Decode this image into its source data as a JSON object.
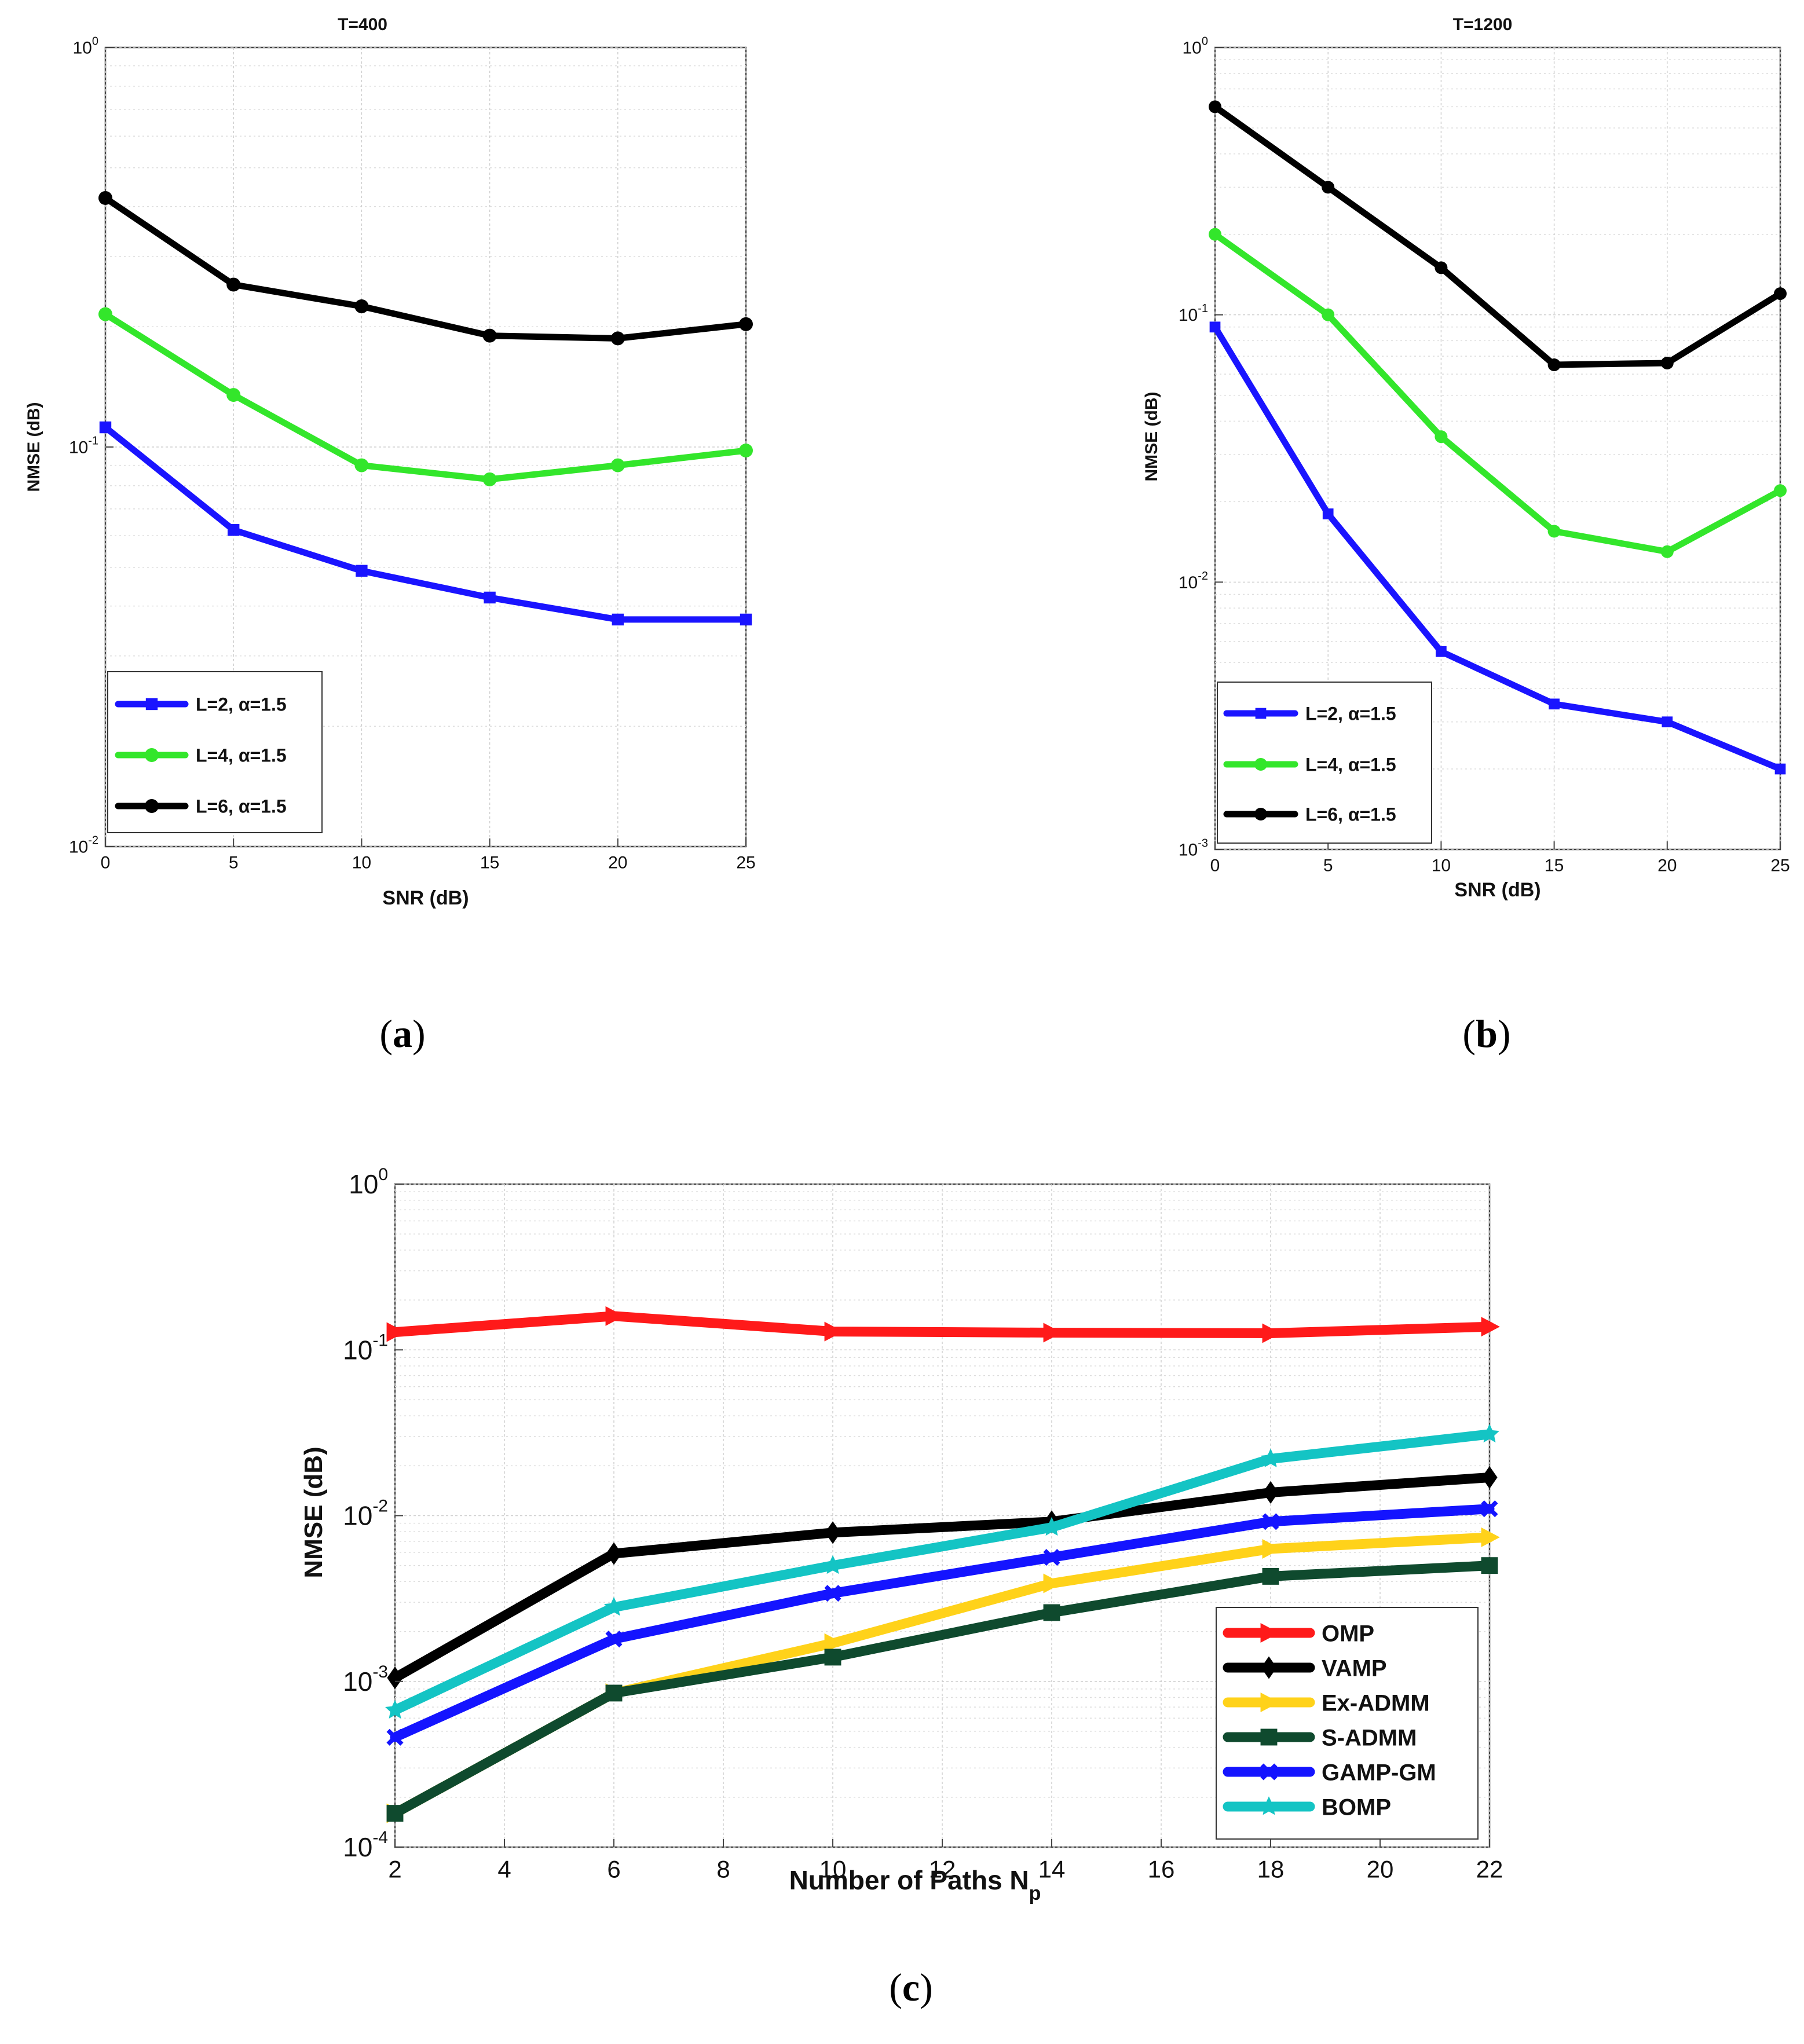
{
  "chart_data": [
    {
      "type": "line",
      "panel_label": "a",
      "title": "T=400",
      "xlabel": "SNR (dB)",
      "ylabel": "NMSE (dB)",
      "yscale": "log",
      "xlim": [
        0,
        25
      ],
      "ylim": [
        0.01,
        1
      ],
      "x_ticks": [
        0,
        5,
        10,
        15,
        20,
        25
      ],
      "y_ticks": [
        {
          "value": 0.01,
          "base": "10",
          "exp": "-2"
        },
        {
          "value": 0.1,
          "base": "10",
          "exp": "-1"
        },
        {
          "value": 1,
          "base": "10",
          "exp": "0"
        }
      ],
      "grid": true,
      "legend_position": "bottom-left",
      "x": [
        0,
        5,
        10,
        15,
        20,
        25
      ],
      "series": [
        {
          "name": "L=2, α=1.5",
          "color": "#1a14ff",
          "marker": "square",
          "values": [
            0.112,
            0.062,
            0.049,
            0.042,
            0.037,
            0.037
          ]
        },
        {
          "name": "L=4, α=1.5",
          "color": "#33e62b",
          "marker": "circle",
          "values": [
            0.215,
            0.135,
            0.09,
            0.083,
            0.09,
            0.098
          ]
        },
        {
          "name": "L=6, α=1.5",
          "color": "#000000",
          "marker": "circle",
          "values": [
            0.42,
            0.255,
            0.225,
            0.19,
            0.187,
            0.203
          ]
        }
      ]
    },
    {
      "type": "line",
      "panel_label": "b",
      "title": "T=1200",
      "xlabel": "SNR (dB)",
      "ylabel": "NMSE (dB)",
      "yscale": "log",
      "xlim": [
        0,
        25
      ],
      "ylim": [
        0.001,
        1
      ],
      "x_ticks": [
        0,
        5,
        10,
        15,
        20,
        25
      ],
      "y_ticks": [
        {
          "value": 0.001,
          "base": "10",
          "exp": "-3"
        },
        {
          "value": 0.01,
          "base": "10",
          "exp": "-2"
        },
        {
          "value": 0.1,
          "base": "10",
          "exp": "-1"
        },
        {
          "value": 1,
          "base": "10",
          "exp": "0"
        }
      ],
      "grid": true,
      "legend_position": "bottom-left",
      "x": [
        0,
        5,
        10,
        15,
        20,
        25
      ],
      "series": [
        {
          "name": "L=2, α=1.5",
          "color": "#1a14ff",
          "marker": "square",
          "values": [
            0.09,
            0.018,
            0.0055,
            0.0035,
            0.003,
            0.002
          ]
        },
        {
          "name": "L=4, α=1.5",
          "color": "#33e62b",
          "marker": "circle",
          "values": [
            0.2,
            0.1,
            0.035,
            0.0155,
            0.013,
            0.022
          ]
        },
        {
          "name": "L=6, α=1.5",
          "color": "#000000",
          "marker": "circle",
          "values": [
            0.6,
            0.3,
            0.15,
            0.065,
            0.066,
            0.12
          ]
        }
      ]
    },
    {
      "type": "line",
      "panel_label": "c",
      "title": "",
      "xlabel": "Number of Paths N",
      "xlabel_sub": "p",
      "ylabel": "NMSE (dB)",
      "yscale": "log",
      "xlim": [
        2,
        22
      ],
      "ylim": [
        0.0001,
        1
      ],
      "x_ticks": [
        2,
        4,
        6,
        8,
        10,
        12,
        14,
        16,
        18,
        20,
        22
      ],
      "y_ticks": [
        {
          "value": 0.0001,
          "base": "10",
          "exp": "-4"
        },
        {
          "value": 0.001,
          "base": "10",
          "exp": "-3"
        },
        {
          "value": 0.01,
          "base": "10",
          "exp": "-2"
        },
        {
          "value": 0.1,
          "base": "10",
          "exp": "-1"
        },
        {
          "value": 1,
          "base": "10",
          "exp": "0"
        }
      ],
      "grid": true,
      "legend_position": "bottom-right",
      "x": [
        2,
        6,
        10,
        14,
        18,
        22
      ],
      "series": [
        {
          "name": "OMP",
          "color": "#ff1a1a",
          "marker": "triangle-right",
          "values": [
            0.128,
            0.16,
            0.129,
            0.127,
            0.126,
            0.138
          ]
        },
        {
          "name": "VAMP",
          "color": "#000000",
          "marker": "diamond",
          "values": [
            0.00105,
            0.0059,
            0.0079,
            0.0092,
            0.0138,
            0.017
          ]
        },
        {
          "name": "Ex-ADMM",
          "color": "#ffd21a",
          "marker": "triangle-right",
          "values": [
            0.00016,
            0.00085,
            0.0017,
            0.0039,
            0.0063,
            0.0074
          ]
        },
        {
          "name": "S-ADMM",
          "color": "#0f4a2e",
          "marker": "square",
          "values": [
            0.00016,
            0.00085,
            0.0014,
            0.0026,
            0.0043,
            0.005
          ]
        },
        {
          "name": "GAMP-GM",
          "color": "#1414ff",
          "marker": "x",
          "values": [
            0.00046,
            0.0018,
            0.0034,
            0.0056,
            0.0092,
            0.011
          ]
        },
        {
          "name": "BOMP",
          "color": "#14c4c4",
          "marker": "star",
          "values": [
            0.00067,
            0.0028,
            0.005,
            0.0085,
            0.022,
            0.031
          ]
        }
      ]
    }
  ]
}
